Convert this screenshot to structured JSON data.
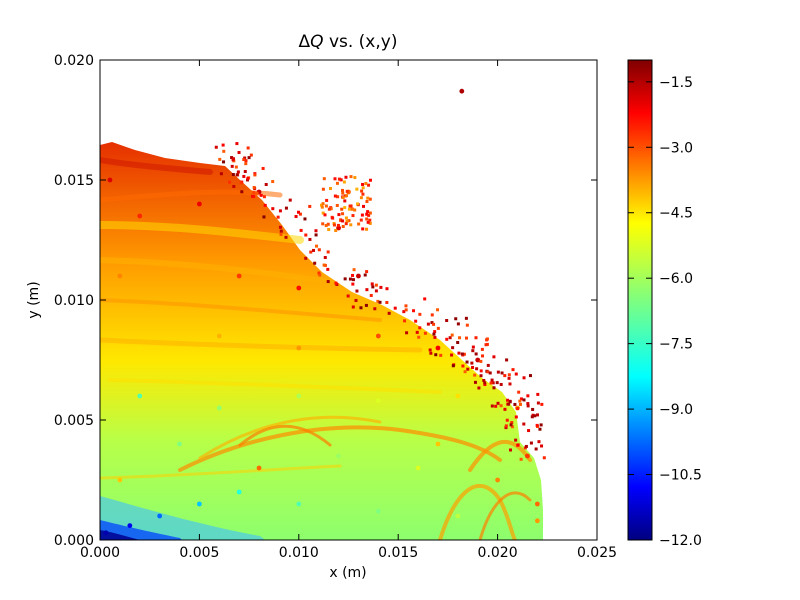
{
  "chart_data": {
    "type": "scatter",
    "title": "ΔQ vs. (x,y)",
    "title_prefix": "Δ",
    "title_var": "Q",
    "title_suffix": " vs. (x,y)",
    "xlabel": "x (m)",
    "ylabel": "y (m)",
    "xlim": [
      0.0,
      0.025
    ],
    "ylim": [
      0.0,
      0.02
    ],
    "x_ticks": [
      "0.000",
      "0.005",
      "0.010",
      "0.015",
      "0.020",
      "0.025"
    ],
    "y_ticks": [
      "0.000",
      "0.005",
      "0.010",
      "0.015",
      "0.020"
    ],
    "grid": false,
    "colorbar": {
      "colormap": "jet",
      "range": [
        -12.0,
        -1.0
      ],
      "ticks": [
        "−1.5",
        "−3.0",
        "−4.5",
        "−6.0",
        "−7.5",
        "−9.0",
        "−10.5",
        "−12.0"
      ],
      "tick_values": [
        -1.5,
        -3.0,
        -4.5,
        -6.0,
        -7.5,
        -9.0,
        -10.5,
        -12.0
      ]
    },
    "series": [
      {
        "points_xy_value": [
          [
            0.0003,
            0.0003,
            -11.5
          ],
          [
            0.0015,
            0.0006,
            -10.8
          ],
          [
            0.003,
            0.001,
            -9.5
          ],
          [
            0.005,
            0.0015,
            -8.5
          ],
          [
            0.007,
            0.002,
            -7.5
          ],
          [
            0.01,
            0.0015,
            -7.0
          ],
          [
            0.014,
            0.0012,
            -6.5
          ],
          [
            0.018,
            0.001,
            -5.8
          ],
          [
            0.022,
            0.0008,
            -4.0
          ],
          [
            0.001,
            0.0025,
            -4.5
          ],
          [
            0.004,
            0.004,
            -6.5
          ],
          [
            0.008,
            0.003,
            -3.5
          ],
          [
            0.012,
            0.0035,
            -6.2
          ],
          [
            0.016,
            0.003,
            -5.5
          ],
          [
            0.02,
            0.0025,
            -3.8
          ],
          [
            0.002,
            0.006,
            -7.0
          ],
          [
            0.006,
            0.0055,
            -6.3
          ],
          [
            0.01,
            0.006,
            -6.0
          ],
          [
            0.014,
            0.0058,
            -5.5
          ],
          [
            0.018,
            0.006,
            -4.8
          ],
          [
            0.021,
            0.0055,
            -4.0
          ],
          [
            0.002,
            0.008,
            -4.8
          ],
          [
            0.006,
            0.0085,
            -4.3
          ],
          [
            0.01,
            0.008,
            -4.0
          ],
          [
            0.014,
            0.0085,
            -3.2
          ],
          [
            0.017,
            0.008,
            -2.3
          ],
          [
            0.019,
            0.0075,
            -1.8
          ],
          [
            0.001,
            0.011,
            -3.8
          ],
          [
            0.004,
            0.0115,
            -4.2
          ],
          [
            0.007,
            0.011,
            -3.0
          ],
          [
            0.01,
            0.0105,
            -2.5
          ],
          [
            0.013,
            0.011,
            -1.8
          ],
          [
            0.002,
            0.0135,
            -2.8
          ],
          [
            0.005,
            0.014,
            -2.2
          ],
          [
            0.008,
            0.0145,
            -1.8
          ],
          [
            0.0005,
            0.015,
            -2.0
          ],
          [
            0.0125,
            0.0145,
            -3.5
          ],
          [
            0.0182,
            0.0187,
            -1.5
          ],
          [
            0.0215,
            0.0035,
            -3.0
          ],
          [
            0.022,
            0.0015,
            -3.5
          ],
          [
            0.017,
            0.004,
            -4.5
          ],
          [
            0.012,
            0.013,
            -2.0
          ]
        ]
      }
    ]
  }
}
